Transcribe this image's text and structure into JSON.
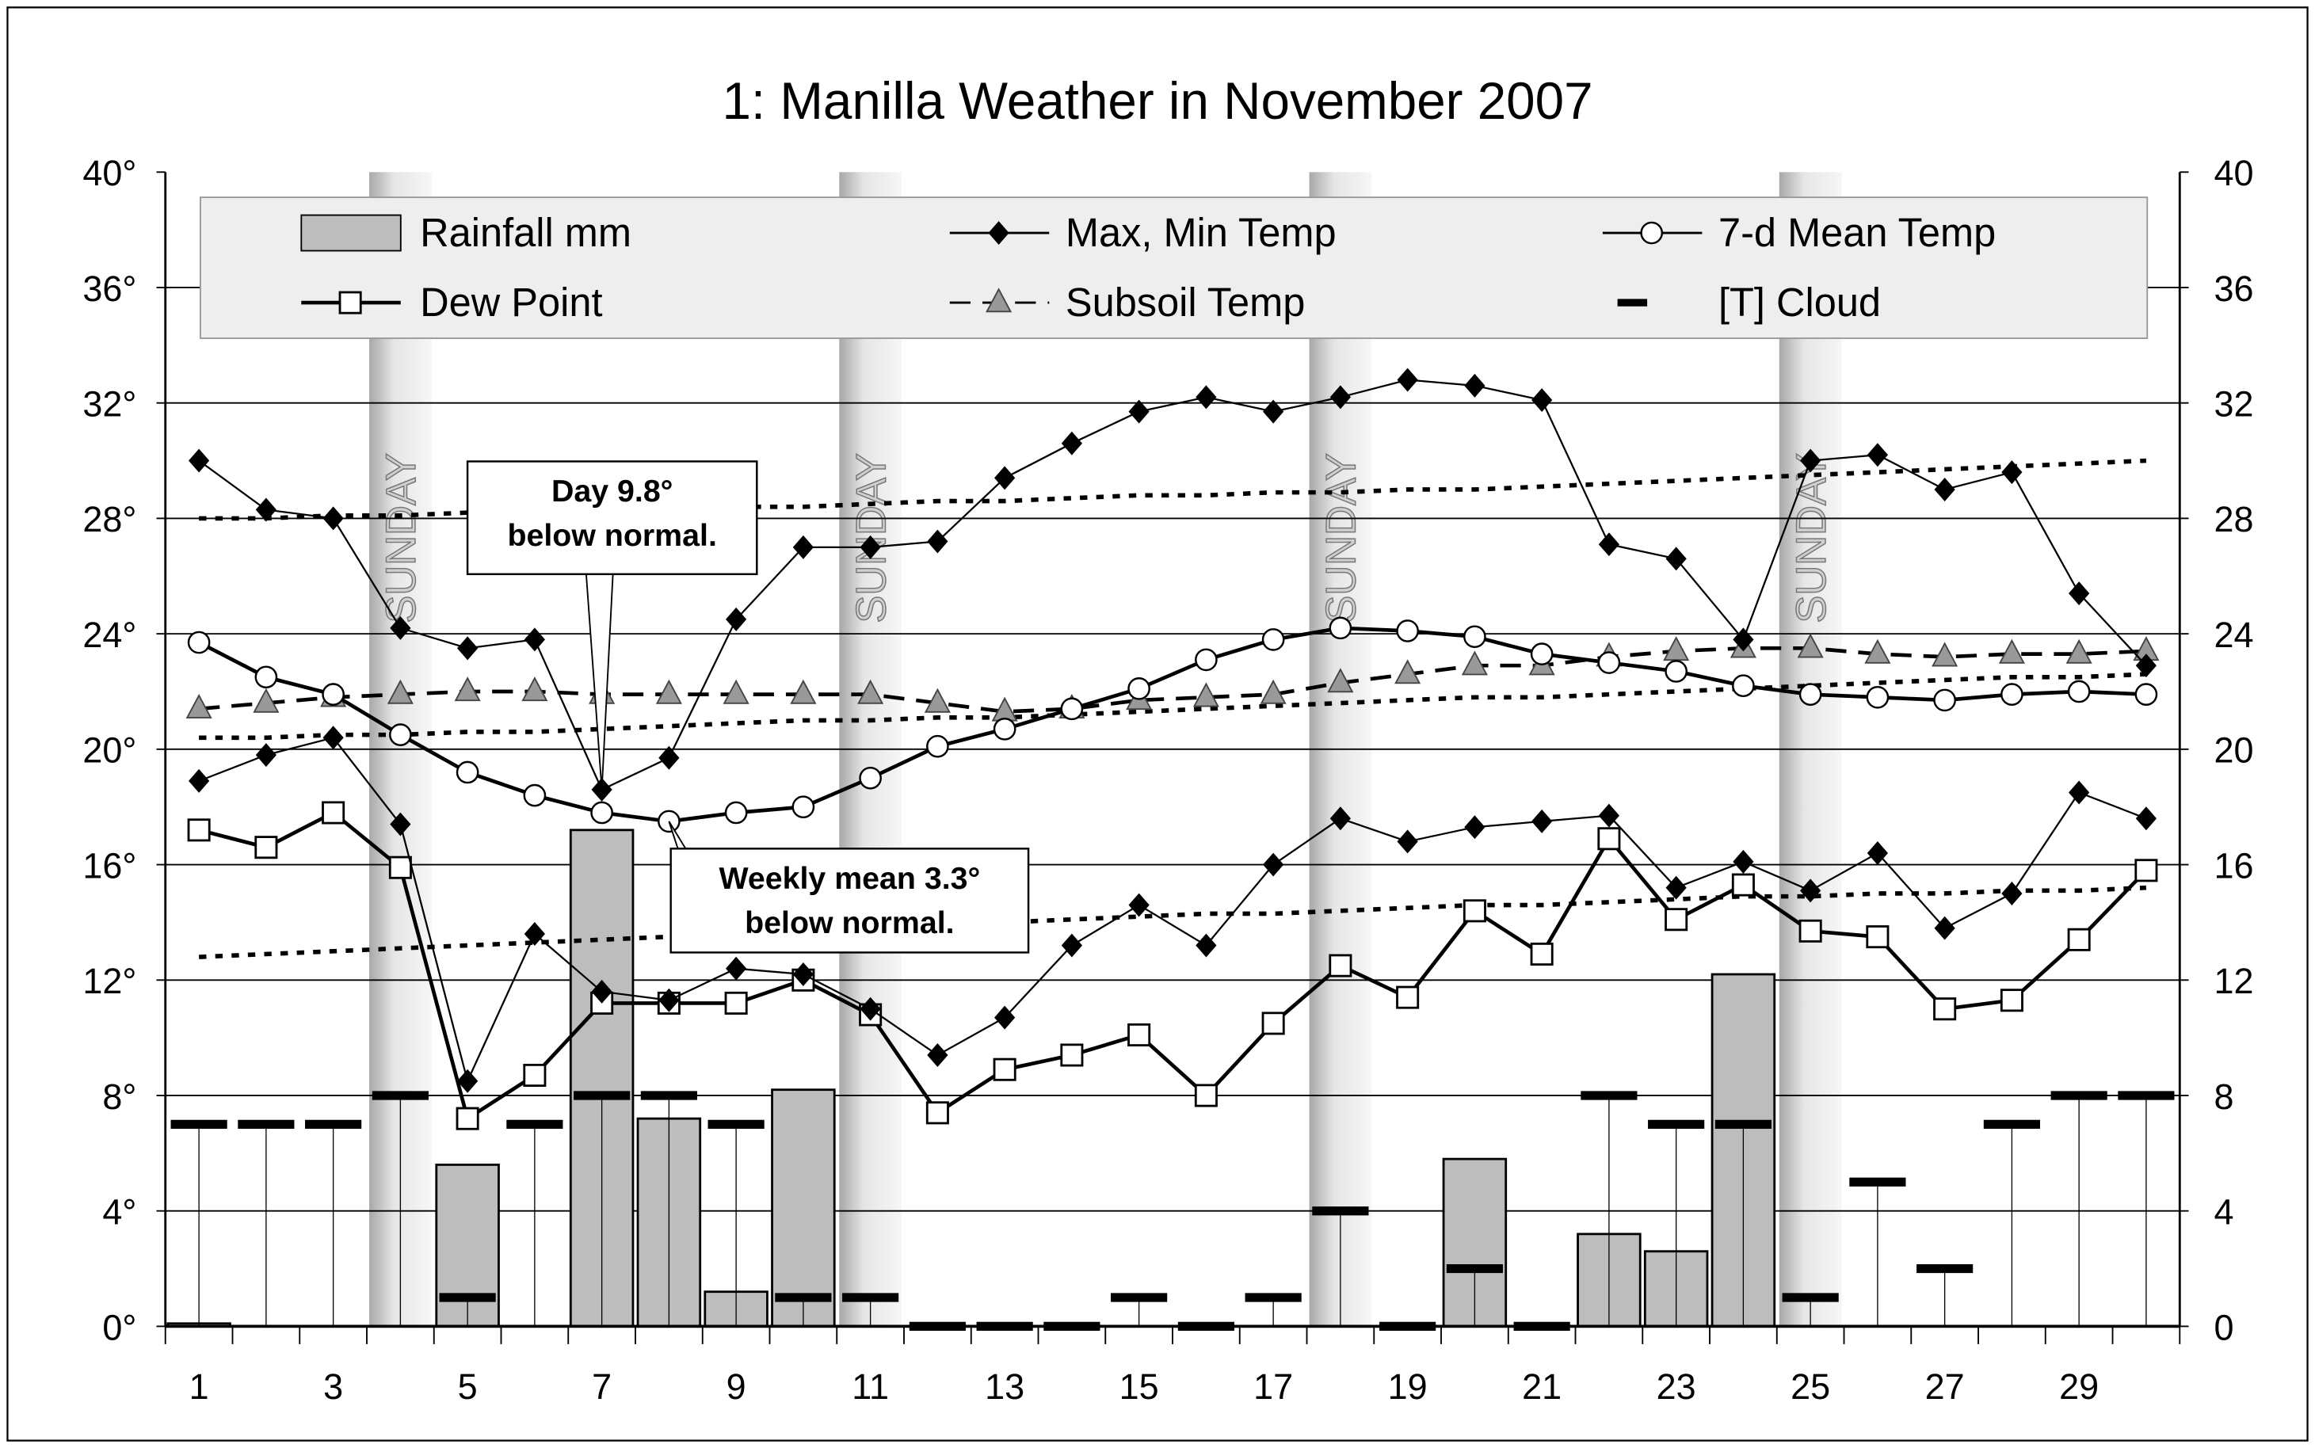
{
  "chart_data": {
    "type": "line",
    "title": "1: Manilla Weather in November 2007",
    "x": [
      1,
      2,
      3,
      4,
      5,
      6,
      7,
      8,
      9,
      10,
      11,
      12,
      13,
      14,
      15,
      16,
      17,
      18,
      19,
      20,
      21,
      22,
      23,
      24,
      25,
      26,
      27,
      28,
      29,
      30
    ],
    "x_tick_labels": [
      "1",
      "3",
      "5",
      "7",
      "9",
      "11",
      "13",
      "15",
      "17",
      "19",
      "21",
      "23",
      "25",
      "27",
      "29"
    ],
    "y_left_tick_labels": [
      "0°",
      "4°",
      "8°",
      "12°",
      "16°",
      "20°",
      "24°",
      "28°",
      "32°",
      "36°",
      "40°"
    ],
    "y_right_tick_labels": [
      "0",
      "4",
      "8",
      "12",
      "16",
      "20",
      "24",
      "28",
      "32",
      "36",
      "40"
    ],
    "ylim": [
      0,
      40
    ],
    "grid": "horizontal every 4",
    "legend_placement": "top",
    "sunday_label": "SUNDAY",
    "sundays": [
      4,
      11,
      18,
      25
    ],
    "series": [
      {
        "name": "Rainfall mm",
        "kind": "bar",
        "values": [
          0.1,
          0,
          0,
          0,
          5.6,
          0,
          17.2,
          7.2,
          1.2,
          8.2,
          0,
          0,
          0,
          0,
          0,
          0,
          0,
          0,
          0,
          5.8,
          0,
          3.2,
          2.6,
          12.2,
          0,
          0,
          0,
          0,
          0,
          0
        ]
      },
      {
        "name": "Max, Min Temp",
        "kind": "line-diamond",
        "values": [
          30.0,
          28.3,
          28.0,
          24.2,
          23.5,
          23.8,
          18.6,
          19.7,
          24.5,
          27.0,
          27.0,
          27.2,
          29.4,
          30.6,
          31.7,
          32.2,
          31.7,
          32.2,
          32.8,
          32.6,
          32.1,
          27.1,
          26.6,
          23.8,
          30.0,
          30.2,
          29.0,
          29.6,
          25.4,
          22.9
        ]
      },
      {
        "name": "Max, Min Temp",
        "kind": "line-diamond",
        "values": [
          18.9,
          19.8,
          20.4,
          17.4,
          8.5,
          13.6,
          11.6,
          11.3,
          12.4,
          12.2,
          11.0,
          9.4,
          10.7,
          13.2,
          14.6,
          13.2,
          16.0,
          17.6,
          16.8,
          17.3,
          17.5,
          17.7,
          15.2,
          16.1,
          15.1,
          16.4,
          13.8,
          15.0,
          18.5,
          17.6
        ]
      },
      {
        "name": "7-d Mean Temp",
        "kind": "line-circle",
        "values": [
          23.7,
          22.5,
          21.9,
          20.5,
          19.2,
          18.4,
          17.8,
          17.5,
          17.8,
          18.0,
          19.0,
          20.1,
          20.7,
          21.4,
          22.1,
          23.1,
          23.8,
          24.2,
          24.1,
          23.9,
          23.3,
          23.0,
          22.7,
          22.2,
          21.9,
          21.8,
          21.7,
          21.9,
          22.0,
          21.9
        ]
      },
      {
        "name": "Dew Point",
        "kind": "line-square",
        "values": [
          17.2,
          16.6,
          17.8,
          15.9,
          7.2,
          8.7,
          11.2,
          11.2,
          11.2,
          12.0,
          10.8,
          7.4,
          8.9,
          9.4,
          10.1,
          8.0,
          10.5,
          12.5,
          11.4,
          14.4,
          12.9,
          16.9,
          14.1,
          15.3,
          13.7,
          13.5,
          11.0,
          11.3,
          13.4,
          15.8
        ]
      },
      {
        "name": "Subsoil Temp",
        "kind": "dashed-triangle",
        "values": [
          21.4,
          21.6,
          21.8,
          21.9,
          22.0,
          22.0,
          21.9,
          21.9,
          21.9,
          21.9,
          21.9,
          21.6,
          21.3,
          21.4,
          21.7,
          21.8,
          21.9,
          22.3,
          22.6,
          22.9,
          22.9,
          23.2,
          23.4,
          23.5,
          23.5,
          23.3,
          23.2,
          23.3,
          23.3,
          23.4
        ]
      },
      {
        "name": "[T] Cloud",
        "kind": "dash",
        "values": [
          7,
          7,
          7,
          8,
          1,
          7,
          8,
          8,
          7,
          1,
          1,
          0,
          0,
          0,
          1,
          0,
          1,
          4,
          0,
          2,
          0,
          8,
          7,
          7,
          1,
          5,
          2,
          7,
          8,
          8
        ]
      },
      {
        "kind": "dotted",
        "values": [
          28.0,
          28.0,
          28.1,
          28.1,
          28.2,
          28.2,
          28.3,
          28.3,
          28.4,
          28.4,
          28.5,
          28.6,
          28.6,
          28.7,
          28.8,
          28.8,
          28.9,
          28.9,
          29.0,
          29.0,
          29.1,
          29.2,
          29.3,
          29.4,
          29.5,
          29.6,
          29.7,
          29.8,
          29.9,
          30.0
        ]
      },
      {
        "kind": "dotted",
        "values": [
          20.4,
          20.4,
          20.5,
          20.5,
          20.6,
          20.6,
          20.7,
          20.8,
          20.9,
          21.0,
          21.0,
          21.1,
          21.1,
          21.2,
          21.3,
          21.4,
          21.5,
          21.6,
          21.7,
          21.8,
          21.8,
          21.9,
          22.0,
          22.1,
          22.2,
          22.3,
          22.4,
          22.5,
          22.5,
          22.6
        ]
      },
      {
        "kind": "dotted",
        "values": [
          12.8,
          12.9,
          13.0,
          13.1,
          13.2,
          13.3,
          13.4,
          13.5,
          13.6,
          13.7,
          13.8,
          13.9,
          14.0,
          14.1,
          14.2,
          14.3,
          14.3,
          14.4,
          14.5,
          14.6,
          14.6,
          14.7,
          14.8,
          14.9,
          14.9,
          15.0,
          15.0,
          15.1,
          15.1,
          15.2
        ]
      }
    ],
    "legend": [
      "Rainfall mm",
      "Max, Min Temp",
      "7-d Mean Temp",
      "Dew Point",
      "Subsoil Temp",
      "[T] Cloud"
    ],
    "annotations": [
      {
        "lines": [
          "Day 9.8°",
          "below normal."
        ],
        "day": 7,
        "value": 18.6
      },
      {
        "lines": [
          "Weekly mean 3.3°",
          "below normal."
        ],
        "day": 8,
        "value": 17.5
      }
    ],
    "colors": {
      "bar": "#bdbdbd",
      "line": "#000000",
      "legend_bg": "#eeeeee",
      "sunday_band": "#b0b0b0"
    }
  }
}
